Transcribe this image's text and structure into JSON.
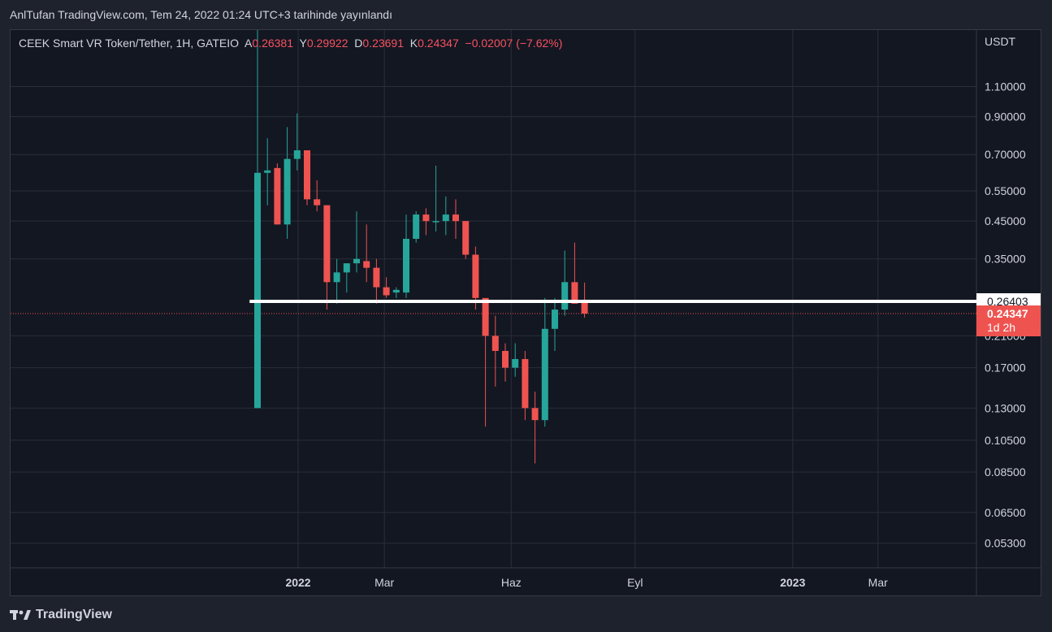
{
  "header": {
    "publish_line": "AnlTufan TradingView.com, Tem 24, 2022 01:24 UTC+3 tarihinde yayınlandı"
  },
  "legend": {
    "symbol": "CEEK Smart VR Token/Tether, 1H, GATEIO",
    "open_label": "A",
    "open_value": "0.26381",
    "high_label": "Y",
    "high_value": "0.29922",
    "low_label": "D",
    "low_value": "0.23691",
    "close_label": "K",
    "close_value": "0.24347",
    "change": "−0.02007 (−7.62%)"
  },
  "footer": {
    "brand": "TradingView"
  },
  "colors": {
    "up": "#26a69a",
    "down": "#ef5350",
    "background": "#131722",
    "grid": "#2a2e39",
    "text": "#d1d4dc"
  },
  "chart_data": {
    "type": "candlestick",
    "y_scale": "log",
    "currency": "USDT",
    "ylim": [
      0.045,
      1.6
    ],
    "y_ticks": [
      "1.10000",
      "0.90000",
      "0.70000",
      "0.55000",
      "0.45000",
      "0.35000",
      "0.21000",
      "0.17000",
      "0.13000",
      "0.10500",
      "0.08500",
      "0.06500",
      "0.05300"
    ],
    "x_ticks": [
      {
        "label": "2022",
        "week": 4.1,
        "bold": true
      },
      {
        "label": "Mar",
        "week": 12.8,
        "bold": false
      },
      {
        "label": "Haz",
        "week": 25.6,
        "bold": false
      },
      {
        "label": "Eyl",
        "week": 38.1,
        "bold": false
      },
      {
        "label": "2023",
        "week": 54.0,
        "bold": true
      },
      {
        "label": "Mar",
        "week": 62.6,
        "bold": false
      }
    ],
    "horizontal_line": {
      "value": 0.26403,
      "label": "0.26403",
      "from_week": -0.8
    },
    "last_price": {
      "value": 0.24347,
      "label": "0.24347",
      "countdown": "1d 2h"
    },
    "candles": [
      {
        "o": 0.13,
        "h": 1.7,
        "l": 0.13,
        "c": 0.62
      },
      {
        "o": 0.62,
        "h": 0.78,
        "l": 0.5,
        "c": 0.63
      },
      {
        "o": 0.64,
        "h": 0.66,
        "l": 0.44,
        "c": 0.44
      },
      {
        "o": 0.44,
        "h": 0.84,
        "l": 0.4,
        "c": 0.68
      },
      {
        "o": 0.68,
        "h": 0.92,
        "l": 0.63,
        "c": 0.72
      },
      {
        "o": 0.72,
        "h": 0.72,
        "l": 0.5,
        "c": 0.52
      },
      {
        "o": 0.52,
        "h": 0.59,
        "l": 0.48,
        "c": 0.5
      },
      {
        "o": 0.5,
        "h": 0.5,
        "l": 0.25,
        "c": 0.3
      },
      {
        "o": 0.3,
        "h": 0.35,
        "l": 0.26,
        "c": 0.32
      },
      {
        "o": 0.32,
        "h": 0.34,
        "l": 0.28,
        "c": 0.34
      },
      {
        "o": 0.34,
        "h": 0.48,
        "l": 0.32,
        "c": 0.35
      },
      {
        "o": 0.345,
        "h": 0.44,
        "l": 0.3,
        "c": 0.33
      },
      {
        "o": 0.33,
        "h": 0.35,
        "l": 0.26,
        "c": 0.29
      },
      {
        "o": 0.29,
        "h": 0.31,
        "l": 0.27,
        "c": 0.275
      },
      {
        "o": 0.28,
        "h": 0.29,
        "l": 0.27,
        "c": 0.285
      },
      {
        "o": 0.28,
        "h": 0.47,
        "l": 0.27,
        "c": 0.4
      },
      {
        "o": 0.4,
        "h": 0.48,
        "l": 0.39,
        "c": 0.47
      },
      {
        "o": 0.47,
        "h": 0.49,
        "l": 0.41,
        "c": 0.45
      },
      {
        "o": 0.45,
        "h": 0.65,
        "l": 0.42,
        "c": 0.45
      },
      {
        "o": 0.45,
        "h": 0.53,
        "l": 0.41,
        "c": 0.47
      },
      {
        "o": 0.47,
        "h": 0.52,
        "l": 0.4,
        "c": 0.45
      },
      {
        "o": 0.45,
        "h": 0.45,
        "l": 0.35,
        "c": 0.36
      },
      {
        "o": 0.36,
        "h": 0.38,
        "l": 0.25,
        "c": 0.27
      },
      {
        "o": 0.27,
        "h": 0.27,
        "l": 0.115,
        "c": 0.21
      },
      {
        "o": 0.21,
        "h": 0.24,
        "l": 0.15,
        "c": 0.19
      },
      {
        "o": 0.19,
        "h": 0.2,
        "l": 0.155,
        "c": 0.17
      },
      {
        "o": 0.17,
        "h": 0.2,
        "l": 0.16,
        "c": 0.18
      },
      {
        "o": 0.18,
        "h": 0.19,
        "l": 0.12,
        "c": 0.13
      },
      {
        "o": 0.13,
        "h": 0.145,
        "l": 0.09,
        "c": 0.12
      },
      {
        "o": 0.12,
        "h": 0.27,
        "l": 0.115,
        "c": 0.22
      },
      {
        "o": 0.22,
        "h": 0.27,
        "l": 0.19,
        "c": 0.25
      },
      {
        "o": 0.25,
        "h": 0.37,
        "l": 0.24,
        "c": 0.3
      },
      {
        "o": 0.3,
        "h": 0.39,
        "l": 0.26,
        "c": 0.26
      },
      {
        "o": 0.26381,
        "h": 0.29922,
        "l": 0.23691,
        "c": 0.24347
      }
    ]
  }
}
